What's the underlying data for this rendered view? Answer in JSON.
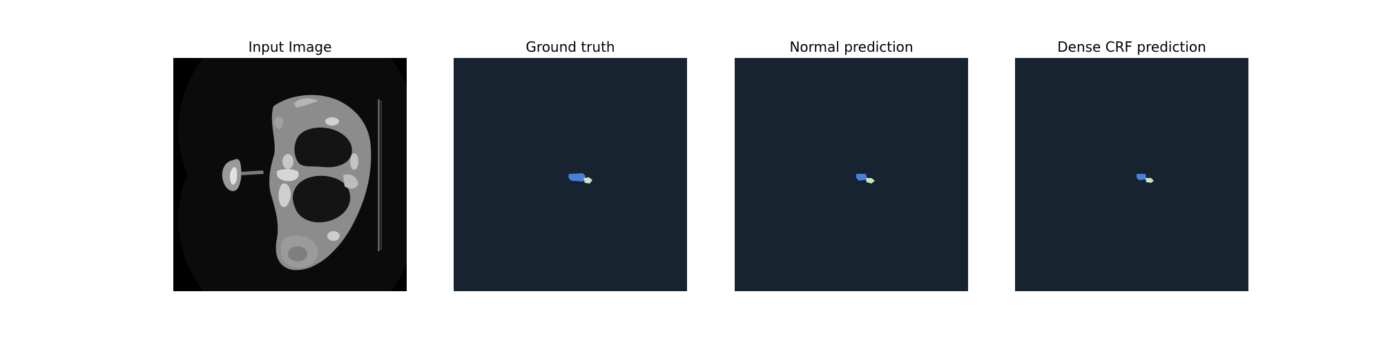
{
  "figure": {
    "panels": [
      {
        "title": "Input Image"
      },
      {
        "title": "Ground truth"
      },
      {
        "title": "Normal prediction"
      },
      {
        "title": "Dense CRF prediction"
      }
    ]
  },
  "colors": {
    "input_background": "#000000",
    "mask_background": "#17232f",
    "class_1_segment": "#4a7fdc",
    "class_2_segment": "#c7e6c6",
    "tissue_gray": "#8f8f8f",
    "bone_light": "#d9d9d9",
    "lung_dark": "#151515"
  }
}
